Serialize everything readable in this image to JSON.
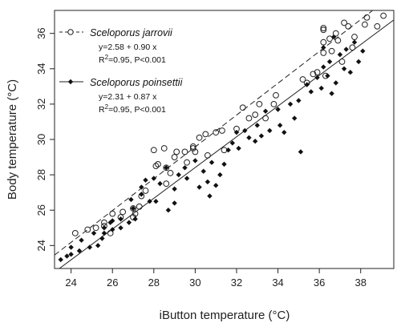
{
  "chart_data": {
    "type": "scatter",
    "xlabel": "iButton temperature (°C)",
    "ylabel": "Body temperature (°C)",
    "xlim": [
      23.2,
      39.6
    ],
    "ylim": [
      22.7,
      37.3
    ],
    "xticks": [
      24,
      26,
      28,
      30,
      32,
      34,
      36,
      38
    ],
    "yticks": [
      24,
      26,
      28,
      30,
      32,
      34,
      36
    ],
    "grid": false,
    "legend_position": "top-left",
    "series": [
      {
        "name": "Sceloporus jarrovii",
        "marker": "open-circle",
        "line": "dashed",
        "equation": "y=2.58 + 0.90 x",
        "stats_r2": "R²=0.95, P<0.001",
        "fit": {
          "intercept": 2.58,
          "slope": 0.9
        },
        "points": [
          [
            24.2,
            24.7
          ],
          [
            24.8,
            24.9
          ],
          [
            25.2,
            25.0
          ],
          [
            25.6,
            25.3
          ],
          [
            25.6,
            25.1
          ],
          [
            25.9,
            24.7
          ],
          [
            26.0,
            25.8
          ],
          [
            26.4,
            25.6
          ],
          [
            26.5,
            25.9
          ],
          [
            27.0,
            25.6
          ],
          [
            27.0,
            26.1
          ],
          [
            27.1,
            25.8
          ],
          [
            27.3,
            26.2
          ],
          [
            27.4,
            26.8
          ],
          [
            27.6,
            27.1
          ],
          [
            28.0,
            29.4
          ],
          [
            28.1,
            28.5
          ],
          [
            28.2,
            28.6
          ],
          [
            28.5,
            29.5
          ],
          [
            28.6,
            27.5
          ],
          [
            28.6,
            28.4
          ],
          [
            28.8,
            28.1
          ],
          [
            29.0,
            29.0
          ],
          [
            29.1,
            29.3
          ],
          [
            29.5,
            29.3
          ],
          [
            29.6,
            28.7
          ],
          [
            29.9,
            29.6
          ],
          [
            29.9,
            29.5
          ],
          [
            30.0,
            29.3
          ],
          [
            30.2,
            30.1
          ],
          [
            30.5,
            30.3
          ],
          [
            30.6,
            29.1
          ],
          [
            31.0,
            30.4
          ],
          [
            31.3,
            30.5
          ],
          [
            31.4,
            29.4
          ],
          [
            32.0,
            30.6
          ],
          [
            32.3,
            31.8
          ],
          [
            32.6,
            31.2
          ],
          [
            32.9,
            31.4
          ],
          [
            33.1,
            32.0
          ],
          [
            33.4,
            31.2
          ],
          [
            33.8,
            32.0
          ],
          [
            33.9,
            32.5
          ],
          [
            35.2,
            33.4
          ],
          [
            35.4,
            33.2
          ],
          [
            35.7,
            33.7
          ],
          [
            35.9,
            33.8
          ],
          [
            36.2,
            36.2
          ],
          [
            36.2,
            35.5
          ],
          [
            36.2,
            34.9
          ],
          [
            36.2,
            36.3
          ],
          [
            36.3,
            33.6
          ],
          [
            36.5,
            35.7
          ],
          [
            36.6,
            35.0
          ],
          [
            36.8,
            36.0
          ],
          [
            36.9,
            35.6
          ],
          [
            37.1,
            34.4
          ],
          [
            37.2,
            36.6
          ],
          [
            37.4,
            36.4
          ],
          [
            37.6,
            35.2
          ],
          [
            37.7,
            35.8
          ],
          [
            38.2,
            36.5
          ],
          [
            38.3,
            36.9
          ],
          [
            38.8,
            36.4
          ],
          [
            39.1,
            37.0
          ]
        ]
      },
      {
        "name": "Sceloporus poinsettii",
        "marker": "filled-diamond",
        "line": "solid",
        "equation": "y=2.31 + 0.87 x",
        "stats_r2": "R²=0.95, P<0.001",
        "fit": {
          "intercept": 2.31,
          "slope": 0.87
        },
        "points": [
          [
            23.5,
            23.2
          ],
          [
            23.8,
            23.4
          ],
          [
            24.0,
            23.5
          ],
          [
            24.0,
            23.9
          ],
          [
            24.4,
            23.7
          ],
          [
            24.5,
            24.3
          ],
          [
            24.9,
            23.9
          ],
          [
            25.1,
            24.7
          ],
          [
            25.3,
            24.0
          ],
          [
            25.5,
            24.4
          ],
          [
            25.6,
            25.0
          ],
          [
            25.6,
            24.7
          ],
          [
            25.9,
            25.3
          ],
          [
            26.0,
            24.9
          ],
          [
            26.0,
            25.4
          ],
          [
            26.4,
            25.0
          ],
          [
            26.4,
            25.5
          ],
          [
            26.8,
            25.3
          ],
          [
            26.9,
            26.6
          ],
          [
            27.0,
            26.1
          ],
          [
            27.1,
            25.5
          ],
          [
            27.4,
            26.9
          ],
          [
            27.4,
            27.3
          ],
          [
            27.6,
            27.7
          ],
          [
            27.8,
            26.5
          ],
          [
            28.0,
            27.8
          ],
          [
            28.1,
            26.5
          ],
          [
            28.3,
            27.5
          ],
          [
            28.6,
            28.4
          ],
          [
            28.7,
            26.0
          ],
          [
            29.0,
            26.4
          ],
          [
            29.0,
            27.2
          ],
          [
            29.2,
            28.0
          ],
          [
            29.5,
            28.4
          ],
          [
            29.6,
            27.8
          ],
          [
            30.0,
            28.8
          ],
          [
            30.2,
            27.3
          ],
          [
            30.4,
            28.2
          ],
          [
            30.6,
            27.6
          ],
          [
            30.7,
            26.8
          ],
          [
            30.8,
            28.7
          ],
          [
            31.0,
            27.4
          ],
          [
            31.2,
            28.0
          ],
          [
            31.4,
            28.6
          ],
          [
            31.6,
            29.4
          ],
          [
            31.8,
            29.8
          ],
          [
            32.0,
            30.4
          ],
          [
            32.1,
            29.5
          ],
          [
            32.4,
            30.5
          ],
          [
            32.6,
            30.1
          ],
          [
            32.9,
            29.9
          ],
          [
            33.0,
            30.8
          ],
          [
            33.2,
            30.2
          ],
          [
            33.4,
            31.6
          ],
          [
            33.6,
            30.5
          ],
          [
            34.0,
            31.7
          ],
          [
            34.1,
            30.8
          ],
          [
            34.3,
            30.4
          ],
          [
            34.6,
            32.0
          ],
          [
            34.8,
            31.2
          ],
          [
            35.0,
            32.2
          ],
          [
            35.1,
            29.3
          ],
          [
            35.4,
            33.1
          ],
          [
            35.6,
            32.7
          ],
          [
            35.9,
            33.5
          ],
          [
            36.1,
            32.9
          ],
          [
            36.2,
            34.1
          ],
          [
            36.2,
            35.2
          ],
          [
            36.4,
            33.6
          ],
          [
            36.5,
            34.4
          ],
          [
            36.6,
            32.6
          ],
          [
            36.7,
            35.8
          ],
          [
            36.8,
            33.2
          ],
          [
            37.0,
            34.8
          ],
          [
            37.2,
            34.0
          ],
          [
            37.3,
            35.1
          ],
          [
            37.5,
            33.8
          ],
          [
            37.7,
            35.5
          ],
          [
            37.9,
            34.4
          ],
          [
            38.1,
            35.0
          ]
        ]
      }
    ]
  }
}
